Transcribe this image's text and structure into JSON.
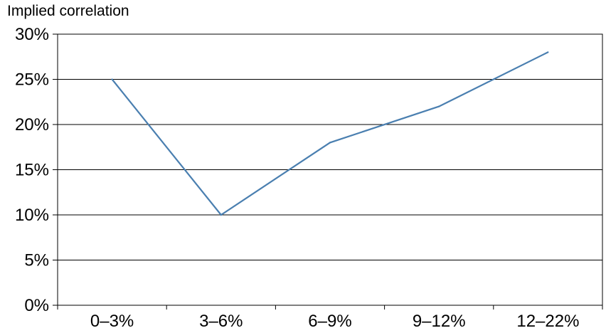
{
  "chart_data": {
    "type": "line",
    "ylabel": "Implied correlation",
    "xlabel": "",
    "title": "",
    "categories": [
      "0–3%",
      "3–6%",
      "6–9%",
      "9–12%",
      "12–22%"
    ],
    "series": [
      {
        "values": [
          25,
          10,
          18,
          22,
          28
        ],
        "color": "#4a7fb0"
      }
    ],
    "ylim": [
      0,
      30
    ],
    "yticks": [
      0,
      5,
      10,
      15,
      20,
      25,
      30
    ],
    "ytick_labels": [
      "0%",
      "5%",
      "10%",
      "15%",
      "20%",
      "25%",
      "30%"
    ],
    "grid": true,
    "legend": "none"
  }
}
